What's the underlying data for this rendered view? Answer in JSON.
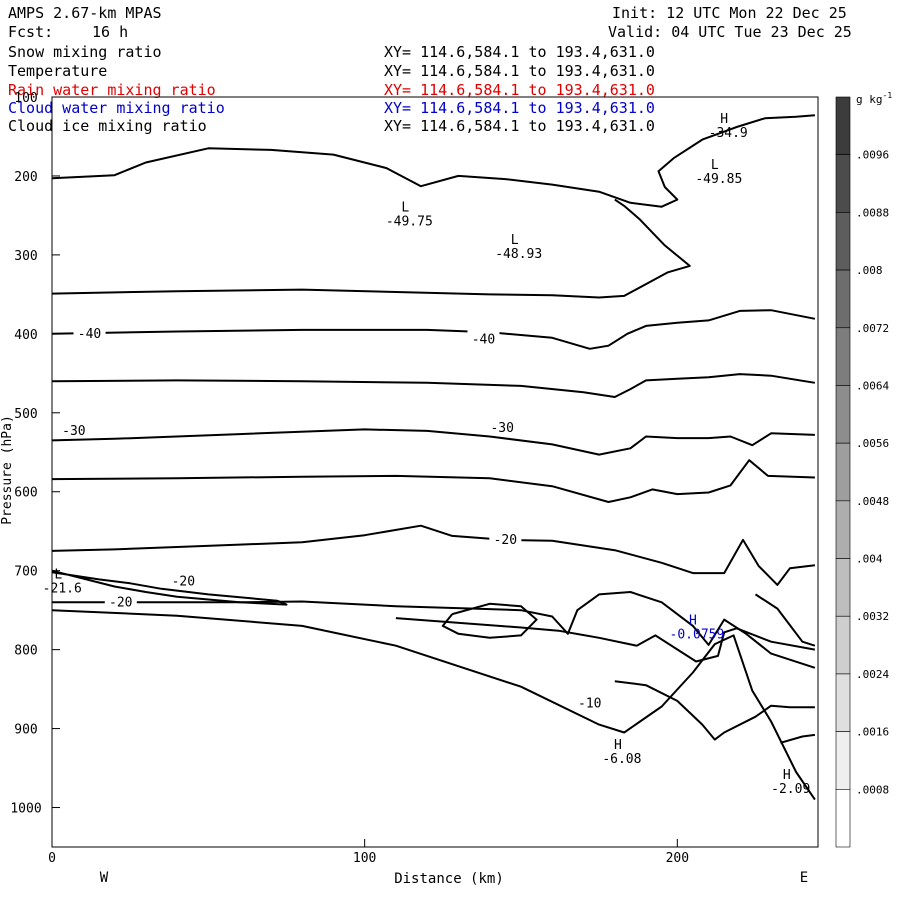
{
  "header": {
    "model": "AMPS 2.67-km MPAS",
    "fcst_label": "Fcst:",
    "fcst_value": "16 h",
    "init": "Init: 12 UTC Mon 22 Dec 25",
    "valid": "Valid: 04 UTC Tue 23 Dec 25"
  },
  "fields": [
    {
      "name": "Snow mixing ratio",
      "xy": "XY= 114.6,584.1 to 193.4,631.0",
      "color": "#000000"
    },
    {
      "name": "Temperature",
      "xy": "XY= 114.6,584.1 to 193.4,631.0",
      "color": "#000000"
    },
    {
      "name": "Rain water mixing ratio",
      "xy": "XY= 114.6,584.1 to 193.4,631.0",
      "color": "#e00000"
    },
    {
      "name": "Cloud water mixing ratio",
      "xy": "XY= 114.6,584.1 to 193.4,631.0",
      "color": "#0000cc"
    },
    {
      "name": "Cloud ice mixing ratio",
      "xy": "XY= 114.6,584.1 to 193.4,631.0",
      "color": "#000000"
    }
  ],
  "chart_data": {
    "type": "contour",
    "xlabel": "Distance (km)",
    "ylabel": "Pressure (hPa)",
    "xlim": [
      0,
      245
    ],
    "ylim": [
      1050,
      100
    ],
    "x_ticks": [
      0,
      100,
      200
    ],
    "y_ticks": [
      100,
      200,
      300,
      400,
      500,
      600,
      700,
      800,
      900,
      1000
    ],
    "x_end_labels": {
      "left": "W",
      "right": "E"
    },
    "colorbar": {
      "unit": "g kg",
      "unit_exp": "-1",
      "ticks": [
        ".0096",
        ".0088",
        ".008",
        ".0072",
        ".0064",
        ".0056",
        ".0048",
        ".004",
        ".0032",
        ".0024",
        ".0016",
        ".0008"
      ]
    },
    "contour_labels": [
      {
        "text": "-40",
        "x": 12,
        "p": 400
      },
      {
        "text": "-40",
        "x": 138,
        "p": 407
      },
      {
        "text": "-30",
        "x": 7,
        "p": 523
      },
      {
        "text": "-30",
        "x": 144,
        "p": 519
      },
      {
        "text": "-20",
        "x": 145,
        "p": 661
      },
      {
        "text": "-20",
        "x": 42,
        "p": 714
      },
      {
        "text": "-20",
        "x": 22,
        "p": 740
      },
      {
        "text": "-10",
        "x": 172,
        "p": 868
      }
    ],
    "extrema": [
      {
        "kind": "L",
        "value": "-49.75",
        "x": 113,
        "p": 245
      },
      {
        "kind": "L",
        "value": "-48.93",
        "x": 148,
        "p": 286
      },
      {
        "kind": "H",
        "value": "-34.9",
        "x": 215,
        "p": 133
      },
      {
        "kind": "L",
        "value": "-49.85",
        "x": 212,
        "p": 191
      },
      {
        "kind": "L",
        "value": "-21.6",
        "x": 2,
        "p": 710
      },
      {
        "kind": "H",
        "value": "-6.08",
        "x": 181,
        "p": 926
      },
      {
        "kind": "H",
        "value": "-2.09",
        "x": 235,
        "p": 964
      },
      {
        "kind": "H",
        "value": "-0.0759",
        "x": 205,
        "p": 768,
        "color": "#0000cc"
      }
    ],
    "contours": [
      [
        [
          0,
          203
        ],
        [
          20,
          199
        ],
        [
          30,
          183
        ],
        [
          50,
          165
        ],
        [
          70,
          167
        ],
        [
          90,
          173
        ],
        [
          107,
          190
        ],
        [
          118,
          213
        ],
        [
          130,
          200
        ],
        [
          145,
          204
        ],
        [
          160,
          211
        ],
        [
          175,
          220
        ],
        [
          185,
          234
        ],
        [
          195,
          239
        ],
        [
          200,
          230
        ],
        [
          196,
          214
        ],
        [
          194,
          194
        ],
        [
          199,
          177
        ],
        [
          208,
          154
        ],
        [
          219,
          138
        ],
        [
          228,
          127
        ],
        [
          238,
          125
        ],
        [
          244,
          123
        ]
      ],
      [
        [
          0,
          349
        ],
        [
          40,
          346
        ],
        [
          80,
          344
        ],
        [
          110,
          347
        ],
        [
          140,
          350
        ],
        [
          160,
          351
        ],
        [
          175,
          354
        ],
        [
          183,
          352
        ],
        [
          190,
          337
        ],
        [
          197,
          322
        ],
        [
          204,
          314
        ],
        [
          196,
          288
        ],
        [
          188,
          255
        ],
        [
          183,
          238
        ],
        [
          180,
          230
        ]
      ],
      [
        [
          0,
          400
        ],
        [
          40,
          397
        ],
        [
          80,
          395
        ],
        [
          120,
          395
        ],
        [
          140,
          398
        ],
        [
          160,
          405
        ],
        [
          172,
          419
        ],
        [
          178,
          415
        ],
        [
          184,
          400
        ],
        [
          190,
          390
        ],
        [
          200,
          386
        ],
        [
          210,
          383
        ],
        [
          220,
          371
        ],
        [
          230,
          370
        ],
        [
          244,
          381
        ]
      ],
      [
        [
          0,
          460
        ],
        [
          40,
          459
        ],
        [
          80,
          460
        ],
        [
          120,
          462
        ],
        [
          150,
          466
        ],
        [
          170,
          474
        ],
        [
          180,
          480
        ],
        [
          185,
          470
        ],
        [
          190,
          459
        ],
        [
          200,
          457
        ],
        [
          210,
          455
        ],
        [
          220,
          451
        ],
        [
          230,
          453
        ],
        [
          244,
          462
        ]
      ],
      [
        [
          0,
          535
        ],
        [
          20,
          533
        ],
        [
          60,
          527
        ],
        [
          100,
          521
        ],
        [
          120,
          523
        ],
        [
          140,
          530
        ],
        [
          160,
          540
        ],
        [
          175,
          553
        ],
        [
          185,
          545
        ],
        [
          190,
          530
        ],
        [
          200,
          532
        ],
        [
          210,
          532
        ],
        [
          217,
          530
        ],
        [
          224,
          541
        ],
        [
          230,
          526
        ],
        [
          244,
          528
        ]
      ],
      [
        [
          0,
          584
        ],
        [
          40,
          583
        ],
        [
          80,
          581
        ],
        [
          110,
          580
        ],
        [
          140,
          583
        ],
        [
          160,
          593
        ],
        [
          178,
          613
        ],
        [
          185,
          607
        ],
        [
          192,
          597
        ],
        [
          200,
          603
        ],
        [
          210,
          601
        ],
        [
          217,
          592
        ],
        [
          223,
          560
        ],
        [
          229,
          580
        ],
        [
          244,
          582
        ]
      ],
      [
        [
          0,
          675
        ],
        [
          20,
          673
        ],
        [
          40,
          670
        ],
        [
          60,
          667
        ],
        [
          80,
          664
        ],
        [
          100,
          655
        ],
        [
          118,
          643
        ],
        [
          128,
          656
        ],
        [
          145,
          661
        ],
        [
          160,
          662
        ],
        [
          180,
          674
        ],
        [
          195,
          690
        ],
        [
          205,
          703
        ],
        [
          215,
          703
        ],
        [
          221,
          661
        ],
        [
          226,
          694
        ],
        [
          232,
          718
        ],
        [
          236,
          697
        ],
        [
          244,
          693
        ]
      ],
      [
        [
          0,
          750
        ],
        [
          40,
          757
        ],
        [
          80,
          770
        ],
        [
          110,
          795
        ],
        [
          150,
          847
        ],
        [
          175,
          895
        ],
        [
          183,
          905
        ],
        [
          195,
          872
        ],
        [
          205,
          829
        ],
        [
          212,
          793
        ],
        [
          218,
          782
        ],
        [
          224,
          852
        ],
        [
          230,
          891
        ],
        [
          238,
          955
        ],
        [
          244,
          990
        ]
      ],
      [
        [
          0,
          700
        ],
        [
          20,
          720
        ],
        [
          30,
          727
        ],
        [
          40,
          733
        ],
        [
          60,
          740
        ],
        [
          75,
          743
        ],
        [
          72,
          738
        ],
        [
          50,
          730
        ],
        [
          35,
          723
        ],
        [
          25,
          716
        ],
        [
          15,
          711
        ],
        [
          5,
          705
        ],
        [
          0,
          702
        ]
      ],
      [
        [
          0,
          740
        ],
        [
          20,
          740
        ],
        [
          60,
          740
        ],
        [
          80,
          739
        ],
        [
          110,
          745
        ],
        [
          135,
          748
        ],
        [
          150,
          750
        ],
        [
          160,
          758
        ],
        [
          165,
          780
        ],
        [
          168,
          750
        ],
        [
          175,
          730
        ],
        [
          185,
          727
        ],
        [
          195,
          740
        ],
        [
          205,
          770
        ],
        [
          210,
          794
        ],
        [
          215,
          762
        ],
        [
          222,
          780
        ],
        [
          230,
          805
        ],
        [
          244,
          823
        ]
      ],
      [
        [
          128,
          755
        ],
        [
          140,
          742
        ],
        [
          150,
          745
        ],
        [
          155,
          762
        ],
        [
          150,
          782
        ],
        [
          140,
          785
        ],
        [
          130,
          780
        ],
        [
          125,
          770
        ],
        [
          128,
          755
        ]
      ],
      [
        [
          110,
          760
        ],
        [
          150,
          772
        ],
        [
          162,
          776
        ],
        [
          175,
          785
        ],
        [
          187,
          795
        ],
        [
          193,
          782
        ],
        [
          206,
          815
        ],
        [
          213,
          808
        ],
        [
          215,
          778
        ],
        [
          219,
          773
        ],
        [
          230,
          790
        ],
        [
          244,
          800
        ]
      ],
      [
        [
          180,
          840
        ],
        [
          190,
          845
        ],
        [
          200,
          865
        ],
        [
          208,
          895
        ],
        [
          212,
          914
        ],
        [
          215,
          905
        ],
        [
          225,
          885
        ],
        [
          230,
          871
        ],
        [
          236,
          873
        ],
        [
          244,
          873
        ]
      ],
      [
        [
          225,
          730
        ],
        [
          232,
          748
        ],
        [
          240,
          790
        ],
        [
          244,
          795
        ]
      ],
      [
        [
          233,
          918
        ],
        [
          240,
          910
        ],
        [
          244,
          908
        ]
      ]
    ]
  }
}
